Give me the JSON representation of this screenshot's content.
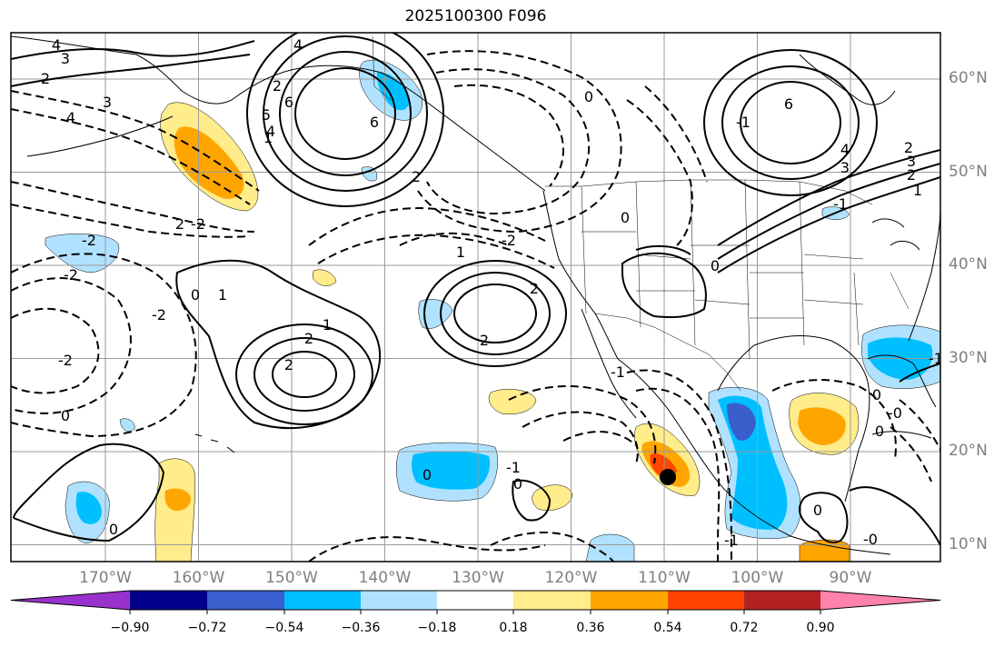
{
  "title": "2025100300 F096",
  "lat_labels": [
    {
      "text": "60°N",
      "lat": 60
    },
    {
      "text": "50°N",
      "lat": 50
    },
    {
      "text": "40°N",
      "lat": 40
    },
    {
      "text": "30°N",
      "lat": 30
    },
    {
      "text": "20°N",
      "lat": 20
    },
    {
      "text": "10°N",
      "lat": 10
    }
  ],
  "lon_labels": [
    {
      "text": "170°W",
      "lon": -170
    },
    {
      "text": "160°W",
      "lon": -160
    },
    {
      "text": "150°W",
      "lon": -150
    },
    {
      "text": "140°W",
      "lon": -140
    },
    {
      "text": "130°W",
      "lon": -130
    },
    {
      "text": "120°W",
      "lon": -120
    },
    {
      "text": "110°W",
      "lon": -110
    },
    {
      "text": "100°W",
      "lon": -100
    },
    {
      "text": "90°W",
      "lon": -90
    }
  ],
  "colorbar": {
    "colors": [
      "#9932cc",
      "#00008b",
      "#3a5fcd",
      "#00bfff",
      "#b0e2ff",
      "#ffffff",
      "#ffec8b",
      "#ffa500",
      "#ff4500",
      "#b22222",
      "#ff82ab"
    ],
    "tick_labels": [
      "−0.90",
      "−0.72",
      "−0.54",
      "−0.36",
      "−0.18",
      "0.18",
      "0.36",
      "0.54",
      "0.72",
      "0.90"
    ]
  },
  "contour_labels": [
    "4",
    "3",
    "2",
    "3",
    "4",
    "6",
    "2",
    "4",
    "6",
    "5",
    "4",
    "1",
    "2",
    "6",
    "3",
    "2",
    "4",
    "3",
    "2",
    "1",
    "-2",
    "2",
    "-2",
    "-2",
    "-2",
    "0",
    "1",
    "1",
    "2",
    "2",
    "-2",
    "0",
    "-2",
    "2",
    "0",
    "2",
    "1",
    "0",
    "-1",
    "0",
    "-0",
    "0",
    "0",
    "-1",
    "0",
    "0",
    "-1",
    "0",
    "-0",
    "0",
    "-1",
    "-1",
    "-1"
  ],
  "marker": "tropical-cyclone-position"
}
